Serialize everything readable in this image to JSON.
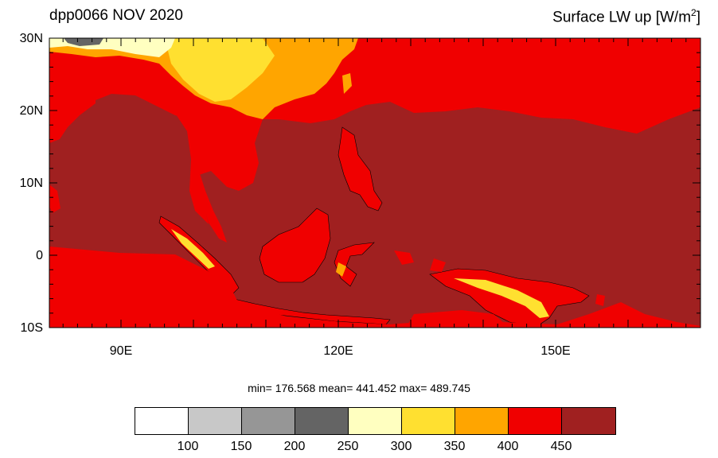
{
  "header": {
    "left_title": "dpp0066 NOV 2020",
    "right_title_main": "Surface LW up [W/m",
    "right_title_sup": "2",
    "right_title_end": "]"
  },
  "axes": {
    "lat_labels": [
      "30N",
      "20N",
      "10N",
      "0",
      "10S"
    ],
    "lon_labels": [
      "90E",
      "120E",
      "150E"
    ]
  },
  "stats": {
    "text": "min= 176.568  mean= 441.452  max= 489.745"
  },
  "colorbar": {
    "colors": [
      "#ffffff",
      "#c8c8c8",
      "#969696",
      "#646464",
      "#ffffc0",
      "#ffe030",
      "#ffa500",
      "#f00000",
      "#a02020"
    ],
    "labels": [
      "100",
      "150",
      "200",
      "250",
      "300",
      "350",
      "400",
      "450"
    ]
  },
  "map": {
    "colors": {
      "ocean": "#a02020",
      "land_warm": "#f00000",
      "land_mid": "#ffa500",
      "land_cool": "#ffe030",
      "land_pale": "#ffffc0",
      "land_grey": "#646464"
    }
  }
}
